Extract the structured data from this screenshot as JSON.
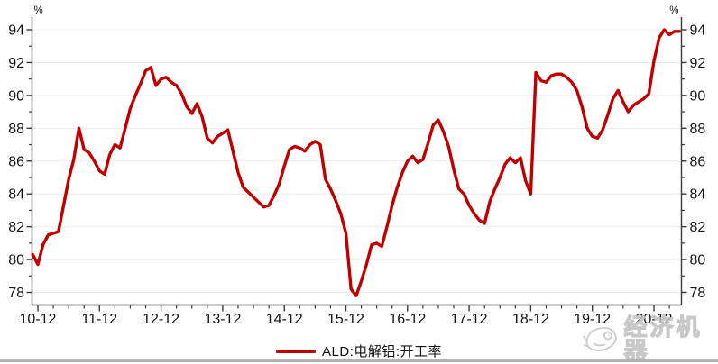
{
  "chart": {
    "unit_left": "%",
    "unit_right": "%",
    "legend_label": "ALD:电解铝:开工率",
    "line_color": "#C00000",
    "grid_color": "#ececec",
    "axis_color": "#3a3a3a",
    "tick_text_color": "#141414"
  },
  "watermark": {
    "text": "经济机器",
    "icon": "whale-logo-icon"
  },
  "chart_data": {
    "type": "line",
    "title": "",
    "xlabel": "",
    "ylabel": "%",
    "ylabel_right": "%",
    "grid": true,
    "legend_position": "bottom",
    "x_axis": {
      "tick_labels": [
        "10-12",
        "11-12",
        "12-12",
        "13-12",
        "14-12",
        "15-12",
        "16-12",
        "17-12",
        "18-12",
        "19-12",
        "20-12"
      ],
      "minor_ticks": "quarterly",
      "note": "labels are YY-MM (December of each year)"
    },
    "y_axis": {
      "tick_labels": [
        94,
        92,
        90,
        88,
        86,
        84,
        82,
        80,
        78
      ],
      "minor_ticks": "every 1, at odd values",
      "range": [
        77.2,
        94.8
      ],
      "mirrored_right": true
    },
    "series": [
      {
        "name": "ALD:电解铝:开工率",
        "color": "#C00000",
        "frequency": "monthly",
        "start": "2010-11",
        "end": "2021-05",
        "values": [
          80.3,
          79.7,
          80.9,
          81.5,
          81.6,
          81.7,
          83.3,
          84.9,
          86.1,
          88.0,
          86.7,
          86.5,
          86.0,
          85.4,
          85.2,
          86.4,
          87.0,
          86.8,
          88.0,
          89.2,
          90.0,
          90.7,
          91.5,
          91.7,
          90.6,
          91.0,
          91.1,
          90.8,
          90.6,
          90.1,
          89.3,
          88.9,
          89.5,
          88.7,
          87.4,
          87.1,
          87.5,
          87.7,
          87.9,
          86.6,
          85.3,
          84.4,
          84.1,
          83.8,
          83.5,
          83.2,
          83.3,
          83.9,
          84.6,
          85.7,
          86.7,
          86.9,
          86.8,
          86.6,
          87.0,
          87.2,
          87.0,
          84.9,
          84.3,
          83.6,
          82.8,
          81.6,
          78.2,
          77.8,
          78.7,
          79.7,
          80.9,
          81.0,
          80.8,
          82.0,
          83.3,
          84.4,
          85.3,
          86.0,
          86.3,
          85.9,
          86.1,
          87.1,
          88.2,
          88.5,
          87.8,
          86.9,
          85.5,
          84.3,
          84.0,
          83.3,
          82.8,
          82.4,
          82.2,
          83.5,
          84.3,
          85.0,
          85.8,
          86.2,
          85.9,
          86.2,
          84.8,
          84.0,
          91.4,
          90.9,
          90.8,
          91.2,
          91.3,
          91.3,
          91.1,
          90.8,
          90.3,
          89.3,
          88.0,
          87.5,
          87.4,
          87.9,
          88.8,
          89.8,
          90.3,
          89.6,
          89.0,
          89.4,
          89.6,
          89.8,
          90.1,
          92.1,
          93.5,
          94.0,
          93.7,
          93.9,
          93.9
        ]
      }
    ]
  }
}
